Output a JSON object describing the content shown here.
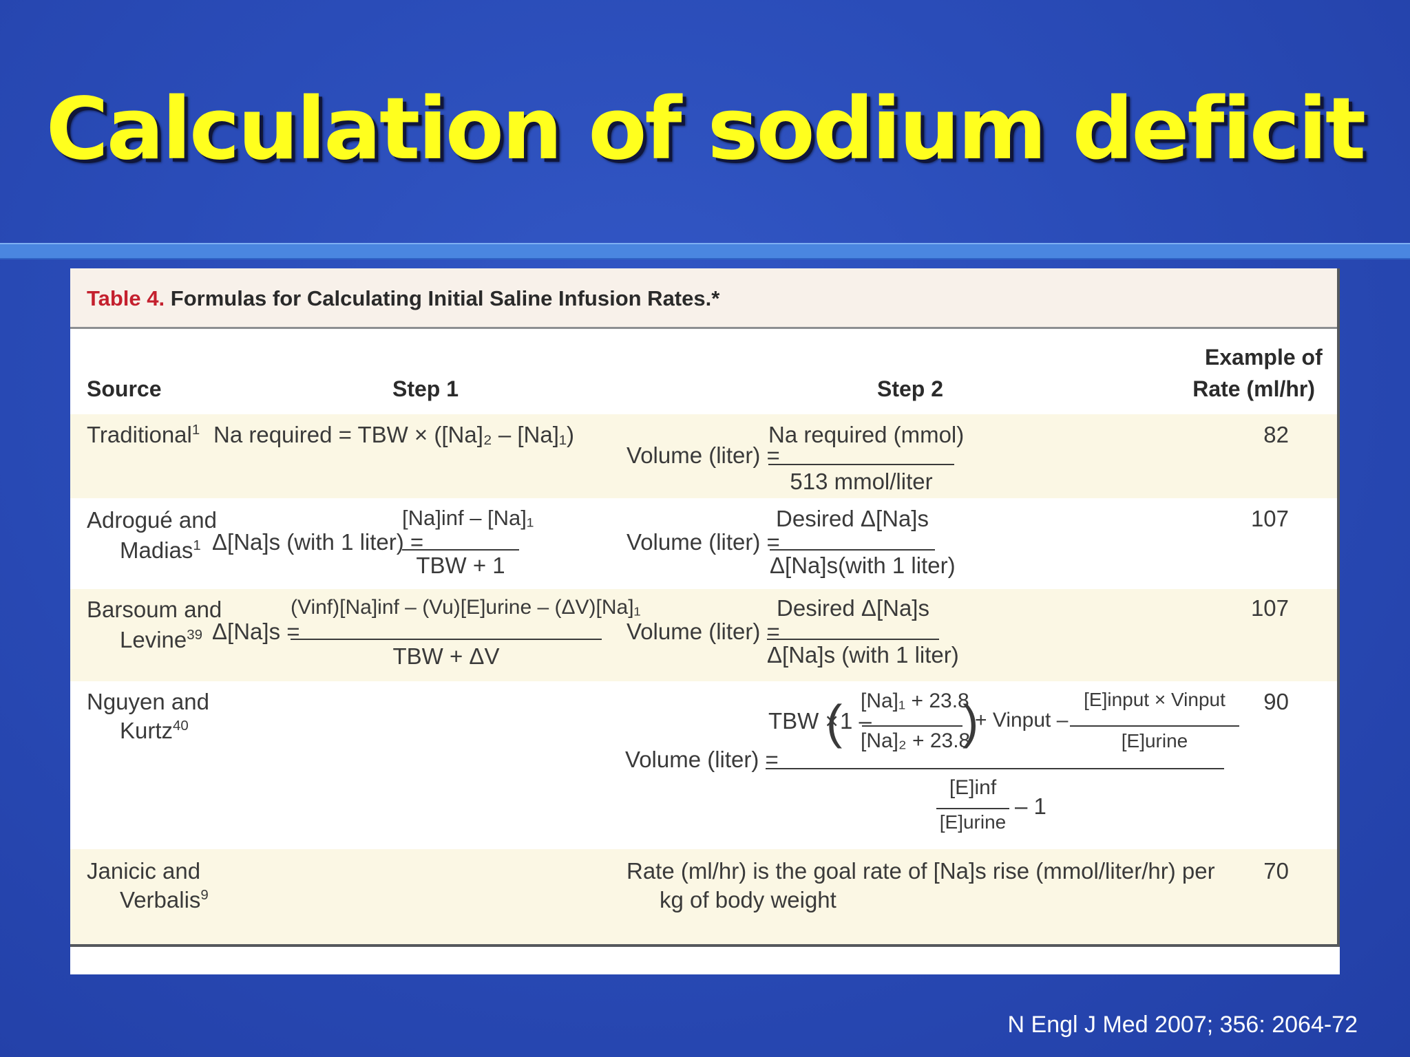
{
  "slide": {
    "title": "Calculation of sodium deficit",
    "citation": "N Engl J Med 2007; 356: 2064-72"
  },
  "table": {
    "caption_number": "Table 4.",
    "caption_text": "Formulas for Calculating Initial Saline Infusion Rates.*",
    "headers": {
      "source": "Source",
      "step1": "Step 1",
      "step2": "Step 2",
      "rate_line1": "Example of",
      "rate_line2": "Rate (ml/hr)"
    },
    "rows": [
      {
        "source_line1": "Traditional",
        "source_ref1": "1",
        "step1": "Na required = TBW × ([Na]₂ – [Na]₁)",
        "step2_lhs": "Volume (liter) =",
        "step2_num": "Na required (mmol)",
        "step2_den": "513 mmol/liter",
        "rate": "82"
      },
      {
        "source_line1": "Adrogué and",
        "source_line2": "Madias",
        "source_ref2": "1",
        "step1_lhs": "Δ[Na]s (with 1 liter) =",
        "step1_num": "[Na]inf – [Na]₁",
        "step1_den": "TBW + 1",
        "step2_lhs": "Volume (liter) =",
        "step2_num": "Desired Δ[Na]s",
        "step2_den": "Δ[Na]s(with 1 liter)",
        "rate": "107"
      },
      {
        "source_line1": "Barsoum and",
        "source_line2": "Levine",
        "source_ref2": "39",
        "step1_lhs": "Δ[Na]s =",
        "step1_num": "(Vinf)[Na]inf – (Vu)[E]urine – (ΔV)[Na]₁",
        "step1_den": "TBW + ΔV",
        "step2_lhs": "Volume (liter) =",
        "step2_num": "Desired Δ[Na]s",
        "step2_den": "Δ[Na]s (with 1 liter)",
        "rate": "107"
      },
      {
        "source_line1": "Nguyen and",
        "source_line2": "Kurtz",
        "source_ref2": "40",
        "step2_lhs": "Volume (liter) =",
        "step2_num_prefix": "TBW ×",
        "step2_inner_num": "[Na]₁ + 23.8",
        "step2_inner_den": "[Na]₂ + 23.8",
        "step2_mid": "+ Vinput –",
        "step2_right_num": "[E]input × Vinput",
        "step2_right_den": "[E]urine",
        "step2_den_num": "[E]inf",
        "step2_den_den": "[E]urine",
        "step2_den_tail": "– 1",
        "rate": "90"
      },
      {
        "source_line1": "Janicic and",
        "source_line2": "Verbalis",
        "source_ref2": "9",
        "step2_line1": "Rate (ml/hr) is the goal rate of [Na]s rise (mmol/liter/hr) per",
        "step2_line2": "kg of body weight",
        "rate": "70"
      }
    ]
  }
}
